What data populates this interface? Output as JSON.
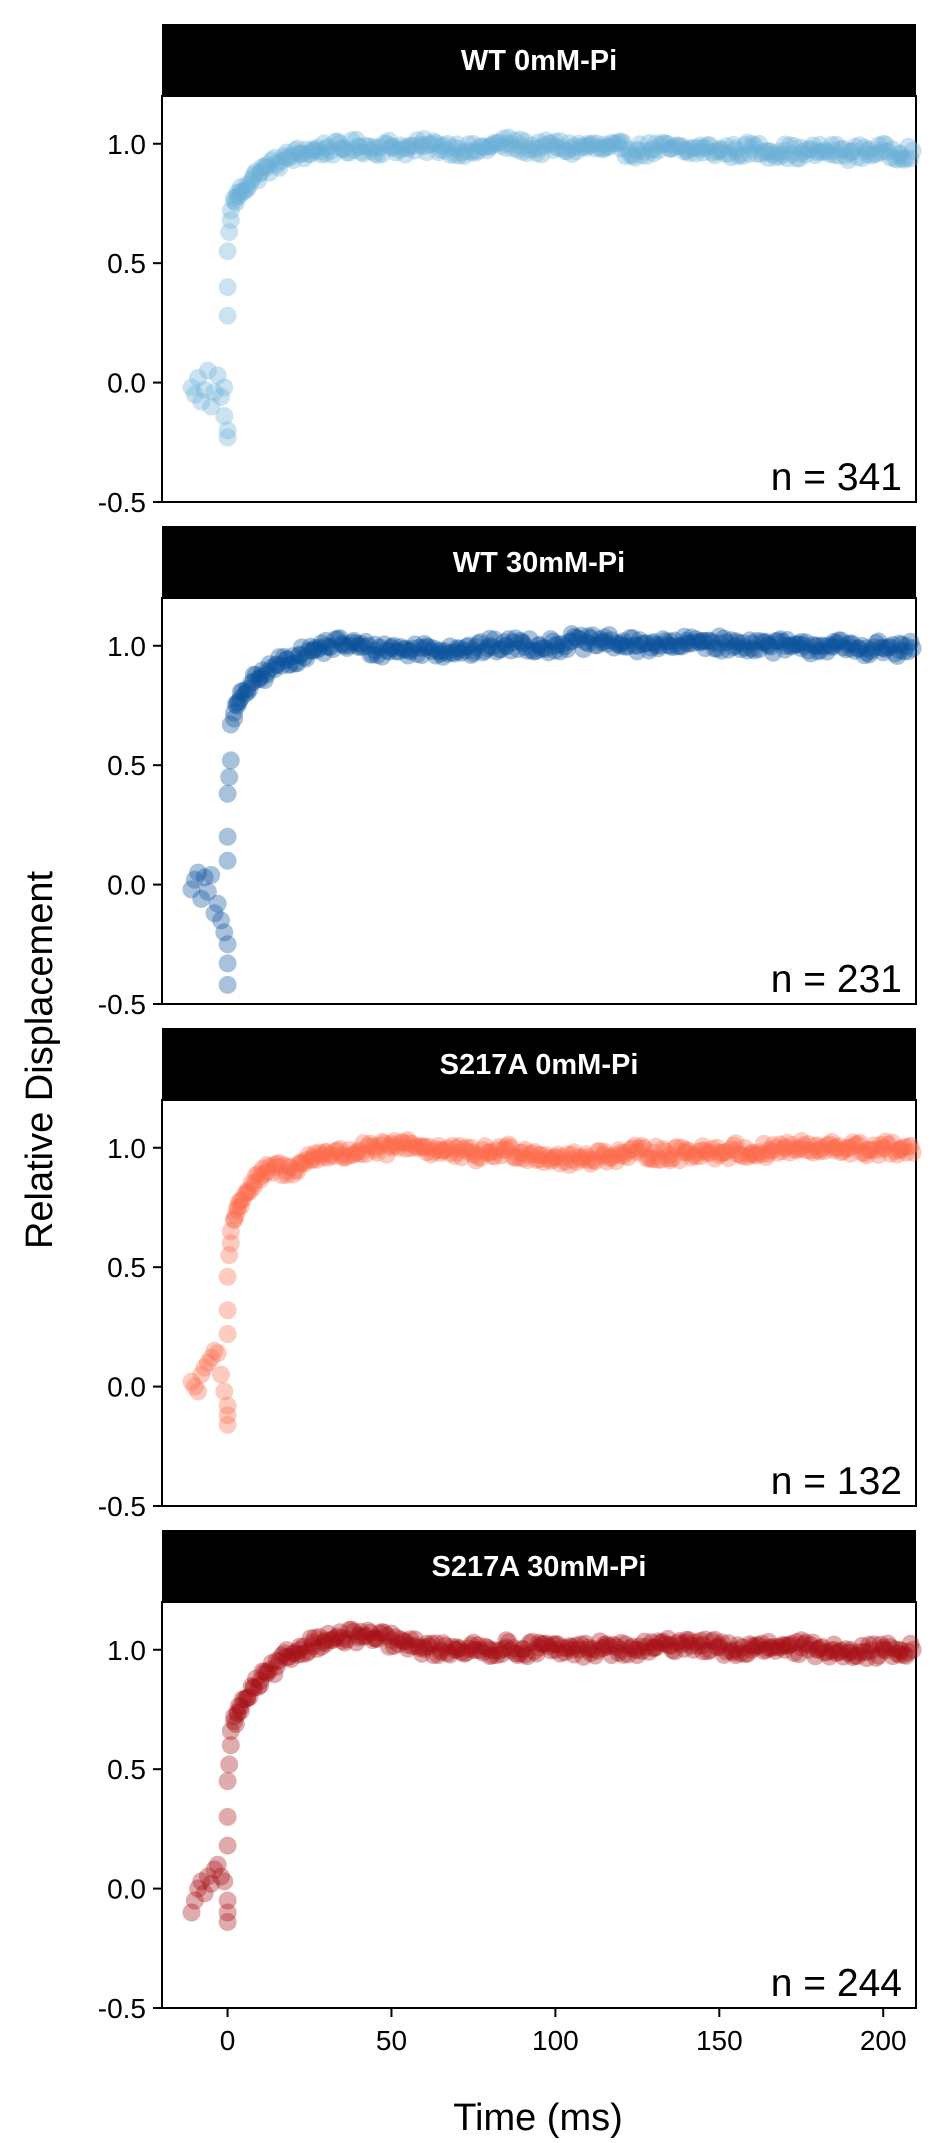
{
  "chart_data": {
    "type": "scatter",
    "xlabel": "Time (ms)",
    "ylabel": "Relative Displacement",
    "xlim": [
      -20,
      210
    ],
    "ylim": [
      -0.5,
      1.2
    ],
    "xticks": [
      0,
      50,
      100,
      150,
      200
    ],
    "yticks": [
      -0.5,
      0.0,
      0.5,
      1.0
    ],
    "ytick_labels": [
      "-0.5",
      "0.0",
      "0.5",
      "1.0"
    ],
    "grid": false,
    "legend": "none",
    "panels": [
      {
        "title": "WT 0mM-Pi",
        "n_label": "n = 341",
        "color": "#6baed6",
        "points": [
          [
            -11,
            -0.02
          ],
          [
            -10,
            -0.05
          ],
          [
            -9,
            0.02
          ],
          [
            -8,
            -0.08
          ],
          [
            -7,
            -0.03
          ],
          [
            -6,
            0.05
          ],
          [
            -5,
            -0.1
          ],
          [
            -4,
            -0.04
          ],
          [
            -3,
            0.03
          ],
          [
            -2,
            -0.06
          ],
          [
            -1,
            -0.02
          ],
          [
            -1,
            -0.14
          ],
          [
            0,
            -0.2
          ],
          [
            0,
            -0.23
          ],
          [
            0,
            0.28
          ],
          [
            0,
            0.4
          ],
          [
            0,
            0.55
          ],
          [
            0.5,
            0.63
          ],
          [
            1,
            0.68
          ],
          [
            1,
            0.72
          ],
          [
            2,
            0.76
          ],
          [
            3,
            0.78
          ],
          [
            4,
            0.8
          ],
          [
            6,
            0.83
          ],
          [
            8,
            0.86
          ],
          [
            10,
            0.88
          ],
          [
            12,
            0.9
          ],
          [
            15,
            0.92
          ],
          [
            18,
            0.94
          ],
          [
            22,
            0.96
          ],
          [
            26,
            0.97
          ],
          [
            30,
            0.98
          ],
          [
            35,
            0.98
          ],
          [
            40,
            0.99
          ],
          [
            45,
            0.98
          ],
          [
            50,
            0.99
          ],
          [
            55,
            0.98
          ],
          [
            60,
            0.99
          ],
          [
            65,
            0.99
          ],
          [
            70,
            0.98
          ],
          [
            75,
            0.97
          ],
          [
            80,
            0.99
          ],
          [
            85,
            1.0
          ],
          [
            90,
            0.99
          ],
          [
            95,
            0.98
          ],
          [
            100,
            0.99
          ],
          [
            105,
            0.98
          ],
          [
            110,
            0.99
          ],
          [
            115,
            0.98
          ],
          [
            120,
            0.98
          ],
          [
            125,
            0.97
          ],
          [
            130,
            0.98
          ],
          [
            135,
            0.98
          ],
          [
            140,
            0.97
          ],
          [
            145,
            0.98
          ],
          [
            150,
            0.97
          ],
          [
            155,
            0.97
          ],
          [
            160,
            0.98
          ],
          [
            165,
            0.97
          ],
          [
            170,
            0.97
          ],
          [
            175,
            0.96
          ],
          [
            180,
            0.97
          ],
          [
            185,
            0.97
          ],
          [
            190,
            0.96
          ],
          [
            195,
            0.97
          ],
          [
            200,
            0.97
          ],
          [
            205,
            0.96
          ],
          [
            209,
            0.97
          ]
        ]
      },
      {
        "title": "WT 30mM-Pi",
        "n_label": "n = 231",
        "color": "#08519c",
        "points": [
          [
            -11,
            -0.02
          ],
          [
            -10,
            0.02
          ],
          [
            -9,
            0.05
          ],
          [
            -8,
            -0.06
          ],
          [
            -7,
            0.03
          ],
          [
            -6,
            -0.03
          ],
          [
            -5,
            0.04
          ],
          [
            -4,
            -0.12
          ],
          [
            -3,
            -0.08
          ],
          [
            -2,
            -0.15
          ],
          [
            -1,
            -0.2
          ],
          [
            0,
            -0.25
          ],
          [
            0,
            -0.33
          ],
          [
            0,
            -0.42
          ],
          [
            0,
            0.1
          ],
          [
            0,
            0.2
          ],
          [
            0,
            0.38
          ],
          [
            0.5,
            0.45
          ],
          [
            1,
            0.52
          ],
          [
            1,
            0.67
          ],
          [
            2,
            0.72
          ],
          [
            3,
            0.75
          ],
          [
            4,
            0.78
          ],
          [
            6,
            0.82
          ],
          [
            8,
            0.85
          ],
          [
            10,
            0.87
          ],
          [
            12,
            0.89
          ],
          [
            15,
            0.92
          ],
          [
            18,
            0.94
          ],
          [
            22,
            0.96
          ],
          [
            26,
            0.98
          ],
          [
            30,
            1.0
          ],
          [
            35,
            1.01
          ],
          [
            40,
            1.0
          ],
          [
            45,
            0.98
          ],
          [
            50,
            0.99
          ],
          [
            55,
            0.98
          ],
          [
            60,
            0.99
          ],
          [
            65,
            0.98
          ],
          [
            70,
            0.99
          ],
          [
            75,
            0.98
          ],
          [
            80,
            1.0
          ],
          [
            85,
            1.0
          ],
          [
            90,
            1.01
          ],
          [
            95,
            1.0
          ],
          [
            100,
            1.0
          ],
          [
            105,
            1.02
          ],
          [
            110,
            1.01
          ],
          [
            115,
            1.02
          ],
          [
            120,
            1.01
          ],
          [
            125,
            1.0
          ],
          [
            130,
            1.01
          ],
          [
            135,
            1.0
          ],
          [
            140,
            1.01
          ],
          [
            145,
            1.02
          ],
          [
            150,
            1.01
          ],
          [
            155,
            1.0
          ],
          [
            160,
            1.01
          ],
          [
            165,
            1.0
          ],
          [
            170,
            1.0
          ],
          [
            175,
            0.99
          ],
          [
            180,
            1.0
          ],
          [
            185,
            1.0
          ],
          [
            190,
            0.99
          ],
          [
            195,
            0.99
          ],
          [
            200,
            0.99
          ],
          [
            205,
            0.98
          ],
          [
            209,
            0.99
          ]
        ]
      },
      {
        "title": "S217A 0mM-Pi",
        "n_label": "n = 132",
        "color": "#fb6a4a",
        "points": [
          [
            -11,
            0.02
          ],
          [
            -10,
            0.0
          ],
          [
            -9,
            -0.02
          ],
          [
            -8,
            0.05
          ],
          [
            -7,
            0.08
          ],
          [
            -6,
            0.1
          ],
          [
            -5,
            0.12
          ],
          [
            -4,
            0.15
          ],
          [
            -3,
            0.14
          ],
          [
            -2,
            0.05
          ],
          [
            -1,
            -0.02
          ],
          [
            0,
            -0.08
          ],
          [
            0,
            -0.12
          ],
          [
            0,
            -0.16
          ],
          [
            0,
            0.22
          ],
          [
            0,
            0.32
          ],
          [
            0,
            0.46
          ],
          [
            0.5,
            0.55
          ],
          [
            1,
            0.6
          ],
          [
            1,
            0.65
          ],
          [
            2,
            0.7
          ],
          [
            3,
            0.74
          ],
          [
            4,
            0.78
          ],
          [
            6,
            0.82
          ],
          [
            8,
            0.85
          ],
          [
            10,
            0.88
          ],
          [
            12,
            0.9
          ],
          [
            15,
            0.92
          ],
          [
            18,
            0.9
          ],
          [
            22,
            0.93
          ],
          [
            26,
            0.96
          ],
          [
            30,
            0.98
          ],
          [
            35,
            0.97
          ],
          [
            40,
            0.99
          ],
          [
            45,
            0.99
          ],
          [
            50,
            1.0
          ],
          [
            55,
            1.02
          ],
          [
            60,
            1.0
          ],
          [
            65,
            0.99
          ],
          [
            70,
            0.98
          ],
          [
            75,
            0.97
          ],
          [
            80,
            0.98
          ],
          [
            85,
            0.99
          ],
          [
            90,
            0.98
          ],
          [
            95,
            0.97
          ],
          [
            100,
            0.96
          ],
          [
            105,
            0.95
          ],
          [
            110,
            0.96
          ],
          [
            115,
            0.97
          ],
          [
            120,
            0.97
          ],
          [
            125,
            0.98
          ],
          [
            130,
            0.98
          ],
          [
            135,
            0.97
          ],
          [
            140,
            0.98
          ],
          [
            145,
            0.99
          ],
          [
            150,
            0.98
          ],
          [
            155,
            0.99
          ],
          [
            160,
            0.98
          ],
          [
            165,
            0.99
          ],
          [
            170,
            1.0
          ],
          [
            175,
            1.0
          ],
          [
            180,
            0.99
          ],
          [
            185,
            1.0
          ],
          [
            190,
            1.0
          ],
          [
            195,
            0.99
          ],
          [
            200,
            1.0
          ],
          [
            205,
            0.99
          ],
          [
            209,
            0.98
          ]
        ]
      },
      {
        "title": "S217A 30mM-Pi",
        "n_label": "n = 244",
        "color": "#a50f15",
        "points": [
          [
            -11,
            -0.1
          ],
          [
            -10,
            -0.05
          ],
          [
            -9,
            0.0
          ],
          [
            -8,
            0.03
          ],
          [
            -7,
            -0.02
          ],
          [
            -6,
            0.05
          ],
          [
            -5,
            0.02
          ],
          [
            -4,
            0.08
          ],
          [
            -3,
            0.1
          ],
          [
            -2,
            0.05
          ],
          [
            -1,
            0.03
          ],
          [
            0,
            -0.05
          ],
          [
            0,
            -0.1
          ],
          [
            0,
            -0.14
          ],
          [
            0,
            0.18
          ],
          [
            0,
            0.3
          ],
          [
            0,
            0.45
          ],
          [
            0.5,
            0.52
          ],
          [
            1,
            0.6
          ],
          [
            1,
            0.66
          ],
          [
            2,
            0.7
          ],
          [
            3,
            0.73
          ],
          [
            4,
            0.76
          ],
          [
            6,
            0.8
          ],
          [
            8,
            0.84
          ],
          [
            10,
            0.87
          ],
          [
            12,
            0.9
          ],
          [
            15,
            0.93
          ],
          [
            18,
            0.97
          ],
          [
            22,
            1.0
          ],
          [
            26,
            1.03
          ],
          [
            30,
            1.04
          ],
          [
            35,
            1.05
          ],
          [
            40,
            1.06
          ],
          [
            45,
            1.05
          ],
          [
            50,
            1.04
          ],
          [
            55,
            1.02
          ],
          [
            60,
            1.01
          ],
          [
            65,
            1.0
          ],
          [
            70,
            1.01
          ],
          [
            75,
            1.0
          ],
          [
            80,
            1.0
          ],
          [
            85,
            1.01
          ],
          [
            90,
            1.0
          ],
          [
            95,
            1.01
          ],
          [
            100,
            1.0
          ],
          [
            105,
            1.0
          ],
          [
            110,
            1.0
          ],
          [
            115,
            1.01
          ],
          [
            120,
            1.0
          ],
          [
            125,
            1.0
          ],
          [
            130,
            1.01
          ],
          [
            135,
            1.02
          ],
          [
            140,
            1.03
          ],
          [
            145,
            1.02
          ],
          [
            150,
            1.01
          ],
          [
            155,
            1.0
          ],
          [
            160,
            1.0
          ],
          [
            165,
            1.01
          ],
          [
            170,
            1.0
          ],
          [
            175,
            1.01
          ],
          [
            180,
            1.0
          ],
          [
            185,
            1.0
          ],
          [
            190,
            1.0
          ],
          [
            195,
            0.99
          ],
          [
            200,
            1.0
          ],
          [
            205,
            1.0
          ],
          [
            209,
            1.0
          ]
        ]
      }
    ]
  }
}
